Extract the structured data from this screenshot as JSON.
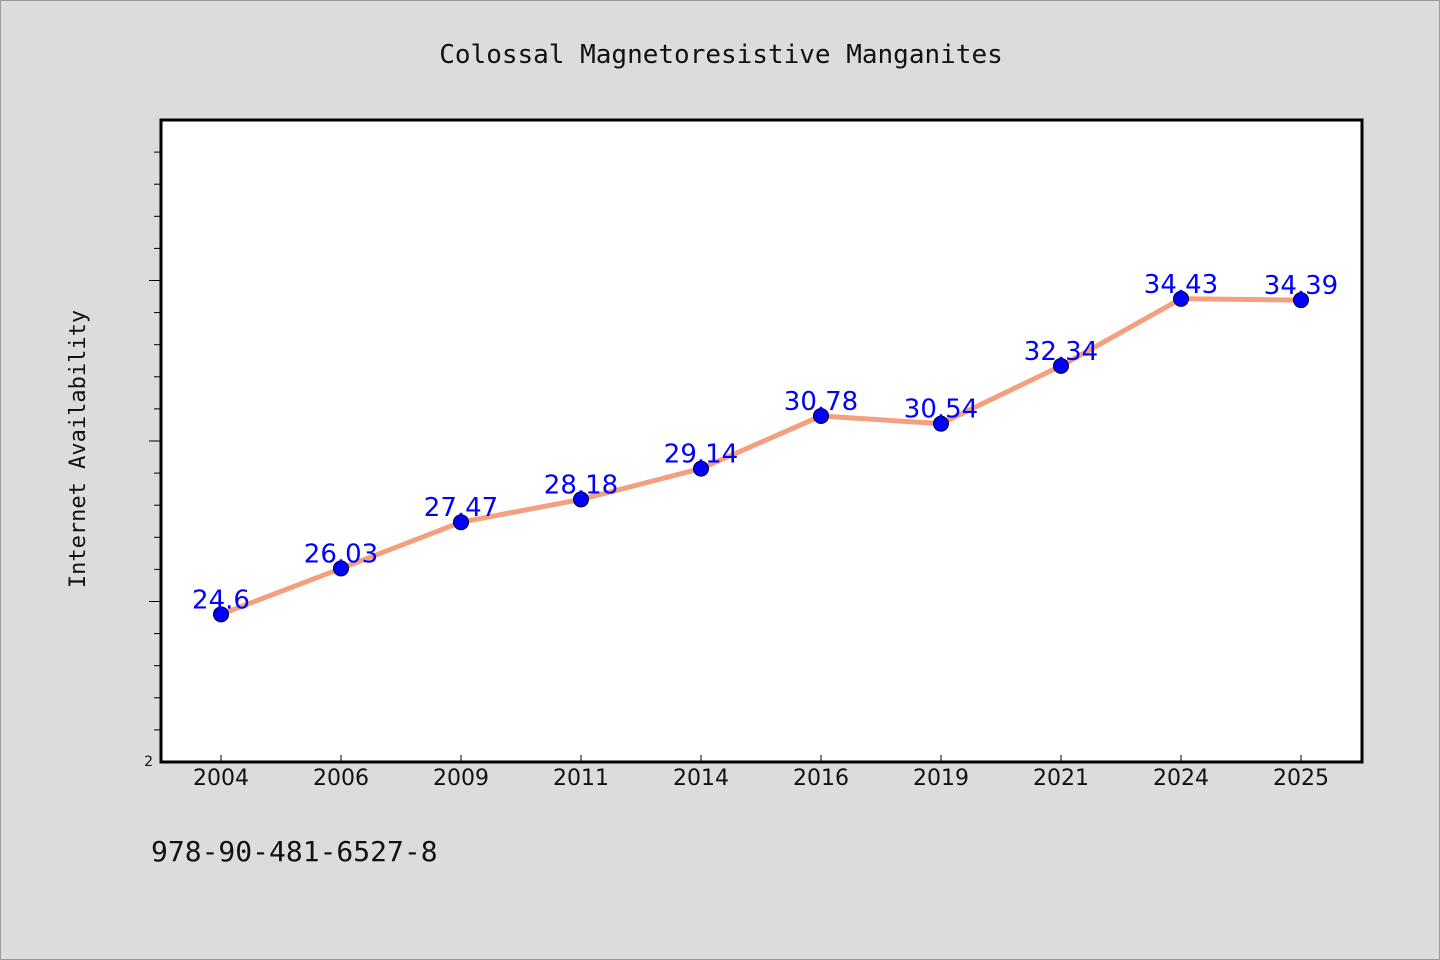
{
  "chart_data": {
    "type": "line",
    "title": "Colossal Magnetoresistive Manganites",
    "xlabel": "",
    "ylabel": "Internet Availability",
    "categories": [
      "2004",
      "2006",
      "2009",
      "2011",
      "2014",
      "2016",
      "2019",
      "2021",
      "2024",
      "2025"
    ],
    "series": [
      {
        "name": "",
        "values": [
          24.6,
          26.03,
          27.47,
          28.18,
          29.14,
          30.78,
          30.54,
          32.34,
          34.43,
          34.39
        ]
      }
    ],
    "data_labels": [
      "24.6",
      "26.03",
      "27.47",
      "28.18",
      "29.14",
      "30.78",
      "30.54",
      "32.34",
      "34.43",
      "34.39"
    ],
    "ylim": [
      20,
      40
    ],
    "y_tick_labels": [
      "2"
    ],
    "grid": false,
    "line_color": "#f4a07e",
    "marker_color": "#0000ff",
    "label_color": "#0000ff"
  },
  "footer": {
    "identifier": "978-90-481-6527-8"
  }
}
